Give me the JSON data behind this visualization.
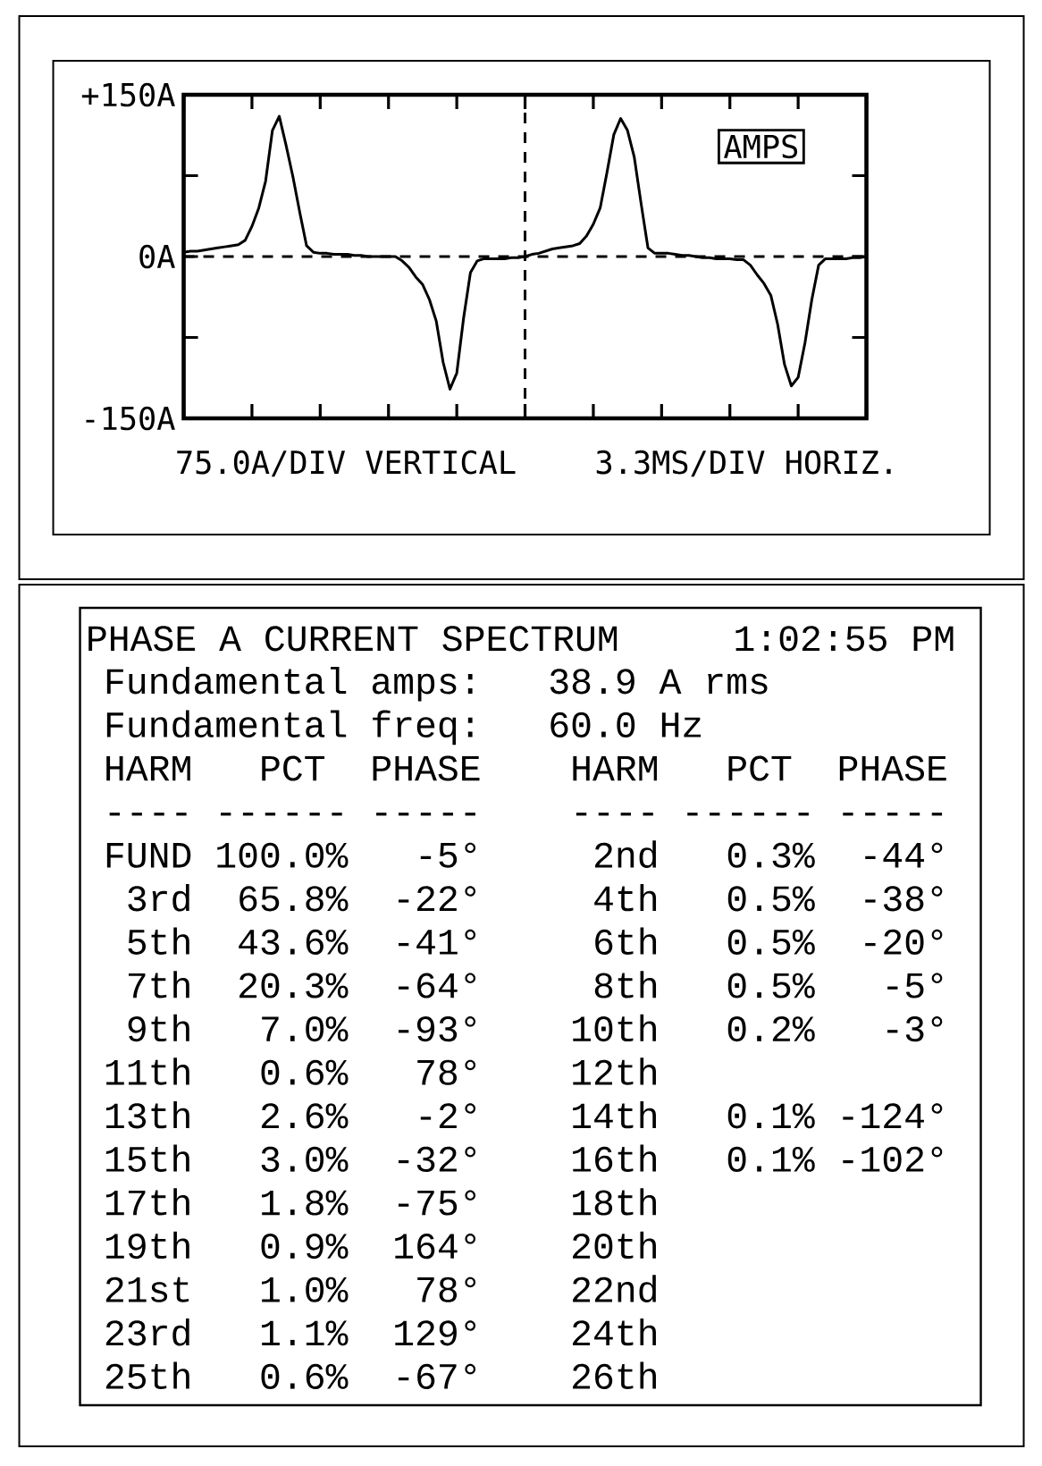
{
  "chart_data": [
    {
      "type": "line",
      "categories": [
        null,
        null,
        null,
        null,
        null,
        null,
        null,
        null,
        null,
        null,
        null,
        null,
        null,
        null,
        null,
        null,
        null,
        null,
        null,
        null,
        null,
        null,
        null,
        null,
        null,
        null,
        null,
        null,
        null,
        null,
        null,
        null,
        null,
        null,
        null,
        null,
        null,
        null,
        null,
        null,
        null,
        null,
        null,
        null,
        null,
        null,
        null,
        null,
        null,
        null,
        null,
        null,
        null,
        null,
        null,
        null,
        null,
        null,
        null,
        null,
        null,
        null,
        null,
        null,
        null,
        null,
        null,
        null,
        null,
        null,
        null,
        null,
        null,
        null,
        null,
        null,
        null,
        null,
        null,
        null,
        null,
        null,
        null,
        null,
        null,
        null,
        null,
        null,
        null,
        null,
        null,
        null,
        null,
        null,
        null,
        null,
        null,
        null,
        null,
        null,
        null
      ],
      "series": [
        {
          "color": "#000000",
          "values": [
            4,
            5,
            5,
            6,
            7,
            8,
            9,
            10,
            11,
            15,
            28,
            45,
            70,
            117,
            130,
            103,
            74,
            41,
            10,
            4,
            3,
            3,
            2,
            2,
            2,
            1,
            1,
            0,
            0,
            0,
            0,
            0,
            -4,
            -10,
            -19,
            -26,
            -40,
            -60,
            -98,
            -123,
            -108,
            -57,
            -15,
            -4,
            -2,
            -2,
            -2,
            -2,
            -1,
            -1,
            0,
            2,
            3,
            5,
            7,
            8,
            9,
            10,
            12,
            19,
            30,
            45,
            78,
            113,
            128,
            117,
            92,
            49,
            8,
            3,
            3,
            3,
            2,
            1,
            1,
            0,
            -1,
            -1,
            -2,
            -2,
            -2,
            -3,
            -3,
            -8,
            -17,
            -25,
            -36,
            -63,
            -100,
            -120,
            -112,
            -80,
            -40,
            -8,
            -2,
            -2,
            -2,
            -2,
            -1,
            -1,
            0
          ]
        }
      ],
      "ylim": [
        -150,
        150
      ],
      "yticks": [
        {
          "value": -150,
          "label": "-150A"
        },
        {
          "value": 0,
          "label": "0A"
        },
        {
          "value": 150,
          "label": "+150A"
        }
      ],
      "tick_labels": "y",
      "marker": "none",
      "line_style": "solid",
      "ref_lines": [
        {
          "axis": "y",
          "value": 0,
          "line_style": "dashed"
        }
      ],
      "annotations": [
        "AMPS",
        "75.0A/DIV VERTICAL",
        "3.3MS/DIV HORIZ."
      ]
    },
    {
      "type": "other",
      "title": "PHASE A CURRENT SPECTRUM",
      "subtitle": "1:02:55 PM",
      "annotations": [
        "Fundamental amps:   38.9 A rms",
        "Fundamental freq:   60.0 Hz",
        "HARM   PCT  PHASE    HARM   PCT  PHASE",
        "---- ------ -----    ---- ------ -----",
        "FUND 100.0%   -5°     2nd   0.3%  -44°",
        " 3rd  65.8%  -22°     4th   0.5%  -38°",
        " 5th  43.6%  -41°     6th   0.5%  -20°",
        " 7th  20.3%  -64°     8th   0.5%   -5°",
        " 9th   7.0%  -93°    10th   0.2%   -3°",
        "11th   0.6%   78°    12th",
        "13th   2.6%   -2°    14th   0.1% -124°",
        "15th   3.0%  -32°    16th   0.1% -102°",
        "17th   1.8%  -75°    18th",
        "19th   0.9%  164°    20th",
        "21st   1.0%   78°    22nd",
        "23rd   1.1%  129°    24th",
        "25th   0.6%  -67°    26th"
      ]
    }
  ]
}
